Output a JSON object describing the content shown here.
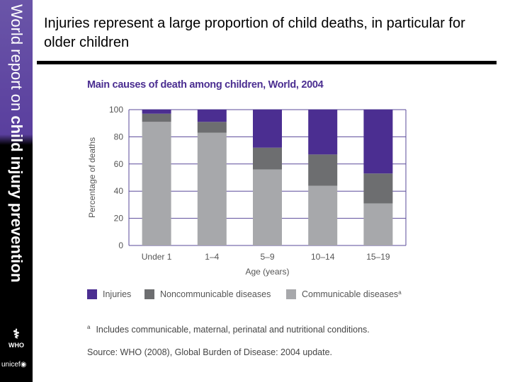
{
  "sidebar": {
    "text_light": "World report on ",
    "text_bold": "child injury prevention",
    "who_label": "WHO",
    "unicef_label": "unicef"
  },
  "slide_title": "Injuries represent a large proportion of child deaths, in particular for older children",
  "chart_data": {
    "type": "bar",
    "stacked": true,
    "title": "Main causes of death among children, World, 2004",
    "xlabel": "Age (years)",
    "ylabel": "Percentage of deaths",
    "ylim": [
      0,
      100
    ],
    "yticks": [
      0,
      20,
      40,
      60,
      80,
      100
    ],
    "grid": true,
    "legend_position": "bottom",
    "categories": [
      "Under 1",
      "1–4",
      "5–9",
      "10–14",
      "15–19"
    ],
    "series": [
      {
        "name": "Communicable diseases",
        "footnote_marker": "a",
        "color": "#a7a8ab",
        "values": [
          91,
          83,
          56,
          44,
          31
        ]
      },
      {
        "name": "Noncommunicable diseases",
        "color": "#6d6e70",
        "values": [
          6,
          8,
          16,
          23,
          22
        ]
      },
      {
        "name": "Injuries",
        "color": "#4b2e91",
        "values": [
          3,
          9,
          28,
          33,
          47
        ]
      }
    ],
    "footnote_marker": "a",
    "footnote": "Includes communicable, maternal, perinatal and nutritional conditions.",
    "source": "Source: WHO (2008), Global Burden of Disease: 2004 update."
  }
}
